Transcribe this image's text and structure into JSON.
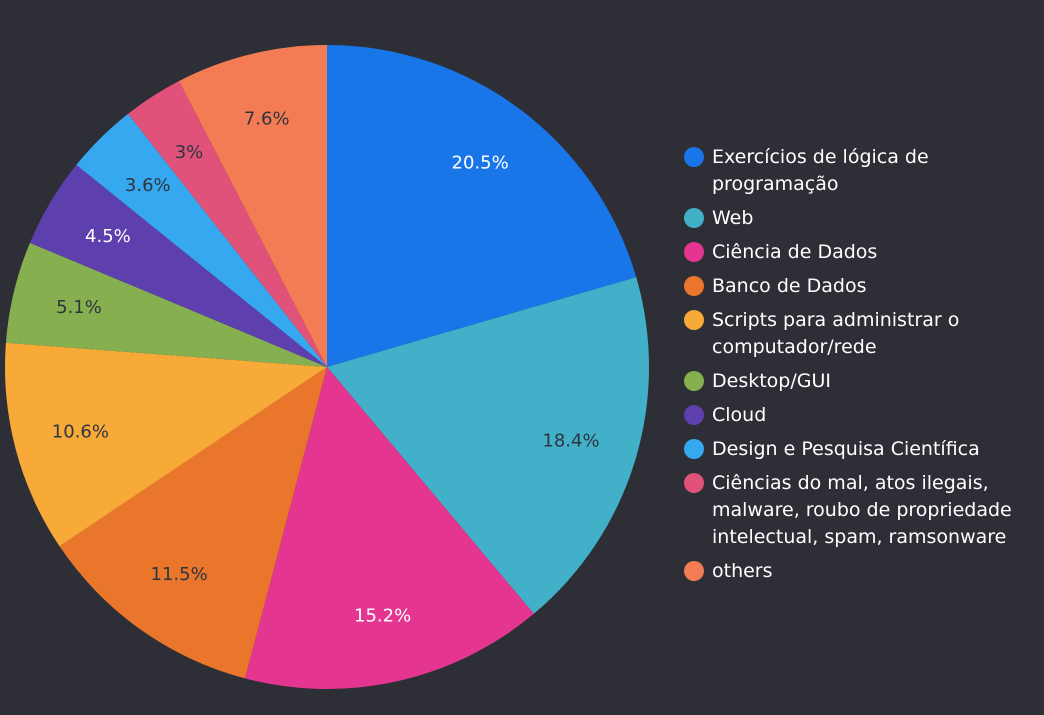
{
  "chart_data": {
    "type": "pie",
    "title": "",
    "start_angle_deg": 0,
    "direction": "clockwise",
    "legend_position": "right",
    "slices": [
      {
        "label": "Exercícios de lógica de programação",
        "value": 20.5,
        "value_label": "20.5%",
        "color": "#1976e8",
        "label_color": "#ffffff"
      },
      {
        "label": "Web",
        "value": 18.4,
        "value_label": "18.4%",
        "color": "#42b0c9",
        "label_color": "#2d3540"
      },
      {
        "label": "Ciência de Dados",
        "value": 15.2,
        "value_label": "15.2%",
        "color": "#e43690",
        "label_color": "#ffffff"
      },
      {
        "label": "Banco de Dados",
        "value": 11.5,
        "value_label": "11.5%",
        "color": "#ea762c",
        "label_color": "#2d3540"
      },
      {
        "label": "Scripts para administrar o computador/rede",
        "value": 10.6,
        "value_label": "10.6%",
        "color": "#f7aa38",
        "label_color": "#2d3540"
      },
      {
        "label": "Desktop/GUI",
        "value": 5.1,
        "value_label": "5.1%",
        "color": "#86b050",
        "label_color": "#2d3540"
      },
      {
        "label": "Cloud",
        "value": 4.5,
        "value_label": "4.5%",
        "color": "#5e3fae",
        "label_color": "#ffffff"
      },
      {
        "label": "Design e Pesquisa Científica",
        "value": 3.6,
        "value_label": "3.6%",
        "color": "#35a8ef",
        "label_color": "#2d3540"
      },
      {
        "label": "Ciências do mal, atos ilegais, malware, roubo de propriedade intelectual, spam, ramsonware",
        "value": 3.0,
        "value_label": "3%",
        "color": "#e0527a",
        "label_color": "#2d3540"
      },
      {
        "label": "others",
        "value": 7.6,
        "value_label": "7.6%",
        "color": "#f47c54",
        "label_color": "#2d3540"
      }
    ]
  }
}
